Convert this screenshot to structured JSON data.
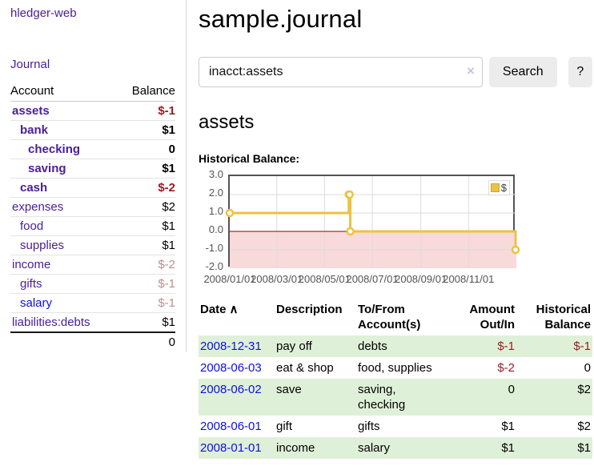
{
  "app": {
    "brand": "hledger-web",
    "nav_journal": "Journal"
  },
  "colors": {
    "purple": "#4a2096",
    "blue": "#0f0fe0",
    "negdark": "#991b1e",
    "negsoft": "#bd8f8f",
    "stripe": "#dff0d8",
    "tick": "#545454",
    "line": "#edc240",
    "negative_region": "#f9dada",
    "zero_line": "#8b0000",
    "grid": "#dcdcdc",
    "plot_border": "#545454"
  },
  "sidebar": {
    "table": {
      "headers": [
        "Account",
        "Balance"
      ],
      "rows": [
        {
          "name": "assets",
          "balance": "$-1",
          "indent": 1,
          "name_class": "acct-strong",
          "value_class": "val-neg-strong"
        },
        {
          "name": "bank",
          "balance": "$1",
          "indent": 2,
          "name_class": "acct-strong",
          "value_class": "val-strong"
        },
        {
          "name": "checking",
          "balance": "0",
          "indent": 3,
          "name_class": "acct-strong",
          "value_class": "val-strong"
        },
        {
          "name": "saving",
          "balance": "$1",
          "indent": 3,
          "name_class": "acct-strong",
          "value_class": "val-strong"
        },
        {
          "name": "cash",
          "balance": "$-2",
          "indent": 2,
          "name_class": "acct-strong",
          "value_class": "val-neg-strong"
        },
        {
          "name": "expenses",
          "balance": "$2",
          "indent": 1,
          "name_class": "acct",
          "value_class": ""
        },
        {
          "name": "food",
          "balance": "$1",
          "indent": 2,
          "name_class": "acct",
          "value_class": ""
        },
        {
          "name": "supplies",
          "balance": "$1",
          "indent": 2,
          "name_class": "acct",
          "value_class": ""
        },
        {
          "name": "income",
          "balance": "$-2",
          "indent": 1,
          "name_class": "acct",
          "value_class": "val-neg-soft"
        },
        {
          "name": "gifts",
          "balance": "$-1",
          "indent": 2,
          "name_class": "acct",
          "value_class": "val-neg-soft"
        },
        {
          "name": "salary",
          "balance": "$-1",
          "indent": 2,
          "name_class": "acct-blue",
          "value_class": "val-neg-soft"
        },
        {
          "name": "liabilities:debts",
          "balance": "$1",
          "indent": 1,
          "name_class": "acct",
          "value_class": ""
        }
      ],
      "total": "0"
    }
  },
  "main": {
    "title": "sample.journal",
    "search": {
      "value": "inacct:assets",
      "clear_icon": "×",
      "button_label": "Search",
      "help_label": "?"
    },
    "account_heading": "assets"
  },
  "chart_data": {
    "type": "line",
    "step": true,
    "title": "Historical Balance:",
    "series": [
      {
        "name": "$",
        "points": [
          [
            "2008-01-01",
            1
          ],
          [
            "2008-06-01",
            2
          ],
          [
            "2008-06-02",
            2
          ],
          [
            "2008-06-03",
            0
          ],
          [
            "2008-12-31",
            -1
          ]
        ]
      }
    ],
    "x_ticks": [
      "2008/01/01",
      "2008/03/01",
      "2008/05/01",
      "2008/07/01",
      "2008/09/01",
      "2008/11/01"
    ],
    "y_ticks": [
      3.0,
      2.0,
      1.0,
      0.0,
      -1.0,
      -2.0
    ],
    "ylim": [
      -2,
      3
    ],
    "xlim": [
      "2008-01-01",
      "2009-01-01"
    ],
    "xlabel": "",
    "ylabel": "",
    "grid": true,
    "legend_position": "top-right",
    "negative_region_shaded": true
  },
  "register": {
    "sort_icon": "∧",
    "headers": [
      "Date",
      "Description",
      "To/From Account(s)",
      "Amount Out/In",
      "Historical Balance"
    ],
    "rows": [
      {
        "date": "2008-12-31",
        "description": "pay off",
        "accounts": "debts",
        "amount": "$-1",
        "amount_neg": true,
        "balance": "$-1",
        "balance_neg": true
      },
      {
        "date": "2008-06-03",
        "description": "eat & shop",
        "accounts": "food, supplies",
        "amount": "$-2",
        "amount_neg": true,
        "balance": "0",
        "balance_neg": false
      },
      {
        "date": "2008-06-02",
        "description": "save",
        "accounts": "saving, checking",
        "amount": "0",
        "amount_neg": false,
        "balance": "$2",
        "balance_neg": false
      },
      {
        "date": "2008-06-01",
        "description": "gift",
        "accounts": "gifts",
        "amount": "$1",
        "amount_neg": false,
        "balance": "$2",
        "balance_neg": false
      },
      {
        "date": "2008-01-01",
        "description": "income",
        "accounts": "salary",
        "amount": "$1",
        "amount_neg": false,
        "balance": "$1",
        "balance_neg": false
      }
    ]
  }
}
